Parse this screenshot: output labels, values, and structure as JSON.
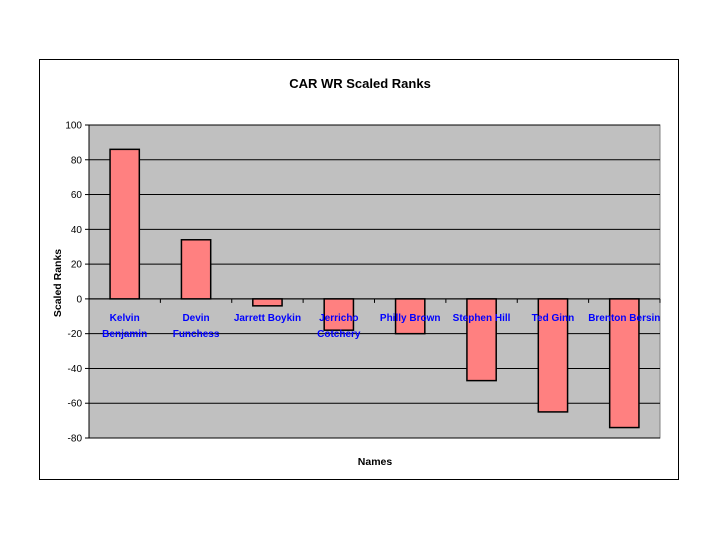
{
  "chart_data": {
    "type": "bar",
    "title": "CAR WR Scaled Ranks",
    "xlabel": "Names",
    "ylabel": "Scaled Ranks",
    "ylim": [
      -80,
      100
    ],
    "ytick_step": 20,
    "grid": true,
    "categories": [
      [
        "Kelvin",
        "Benjamin"
      ],
      [
        "Devin",
        "Funchess"
      ],
      [
        "Jarrett Boykin"
      ],
      [
        "Jerricho",
        "Cotchery"
      ],
      [
        "Philly Brown"
      ],
      [
        "Stephen Hill"
      ],
      [
        "Ted Ginn"
      ],
      [
        "Brenton Bersin"
      ]
    ],
    "values": [
      86,
      34,
      -4,
      -18,
      -20,
      -47,
      -65,
      -74
    ],
    "colors": {
      "bar_fill": "#ff8080",
      "bar_stroke": "#000000",
      "plot_bg": "#c0c0c0",
      "category_text": "#0000ff",
      "grid": "#000000"
    }
  }
}
